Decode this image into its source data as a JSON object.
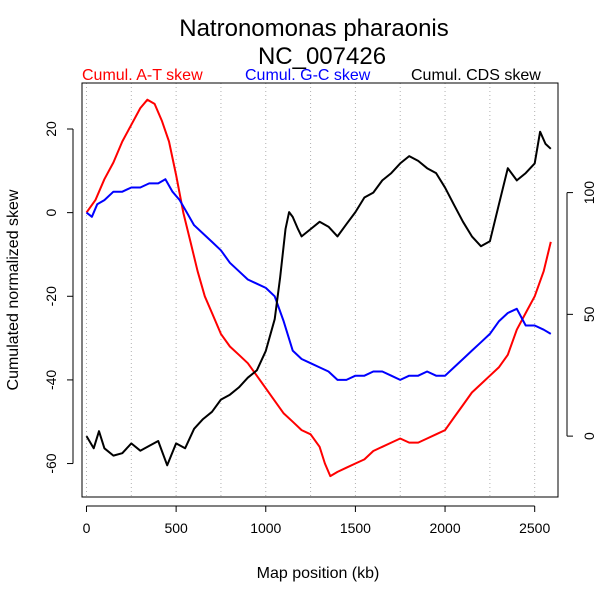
{
  "chart_data": {
    "type": "line",
    "title": "Natronomonas pharaonis",
    "subtitle": "NC_007426",
    "xlabel": "Map position (kb)",
    "ylabel": "Cumulated normalized skew",
    "xlim": [
      -25,
      2630
    ],
    "ylim": [
      -68,
      31
    ],
    "y2lim": [
      -25,
      145
    ],
    "x_ticks": [
      0,
      500,
      1000,
      1500,
      2000,
      2500
    ],
    "y_ticks": [
      -60,
      -40,
      -20,
      0,
      20
    ],
    "y2_ticks": [
      0,
      50,
      100
    ],
    "grid": "vertical-dotted",
    "legend_placement": "top",
    "series": [
      {
        "name": "Cumul. A-T skew",
        "color": "#ff0000",
        "axis": "left",
        "x": [
          0,
          50,
          100,
          150,
          200,
          250,
          300,
          340,
          380,
          420,
          460,
          500,
          540,
          580,
          620,
          660,
          700,
          750,
          800,
          850,
          900,
          950,
          1000,
          1050,
          1100,
          1150,
          1200,
          1250,
          1300,
          1330,
          1360,
          1400,
          1450,
          1500,
          1550,
          1600,
          1650,
          1700,
          1750,
          1800,
          1850,
          1900,
          1950,
          2000,
          2050,
          2100,
          2150,
          2200,
          2250,
          2300,
          2350,
          2400,
          2450,
          2500,
          2550,
          2590
        ],
        "y": [
          0,
          3,
          8,
          12,
          17,
          21,
          25,
          27,
          26,
          22,
          17,
          9,
          0,
          -7,
          -14,
          -20,
          -24,
          -29,
          -32,
          -34,
          -36,
          -39,
          -42,
          -45,
          -48,
          -50,
          -52,
          -53,
          -56,
          -60,
          -63,
          -62,
          -61,
          -60,
          -59,
          -57,
          -56,
          -55,
          -54,
          -55,
          -55,
          -54,
          -53,
          -52,
          -49,
          -46,
          -43,
          -41,
          -39,
          -37,
          -34,
          -28,
          -24,
          -20,
          -14,
          -7
        ]
      },
      {
        "name": "Cumul. G-C skew",
        "color": "#0000ff",
        "axis": "left",
        "x": [
          0,
          30,
          60,
          100,
          150,
          200,
          250,
          300,
          350,
          400,
          440,
          480,
          520,
          560,
          600,
          650,
          700,
          750,
          800,
          850,
          900,
          950,
          1000,
          1050,
          1100,
          1150,
          1200,
          1250,
          1300,
          1350,
          1400,
          1450,
          1500,
          1550,
          1600,
          1650,
          1700,
          1750,
          1800,
          1850,
          1900,
          1950,
          2000,
          2050,
          2100,
          2150,
          2200,
          2250,
          2300,
          2350,
          2400,
          2450,
          2500,
          2550,
          2590
        ],
        "y": [
          0,
          -1,
          2,
          3,
          5,
          5,
          6,
          6,
          7,
          7,
          8,
          5,
          3,
          0,
          -3,
          -5,
          -7,
          -9,
          -12,
          -14,
          -16,
          -17,
          -18,
          -20,
          -26,
          -33,
          -35,
          -36,
          -37,
          -38,
          -40,
          -40,
          -39,
          -39,
          -38,
          -38,
          -39,
          -40,
          -39,
          -39,
          -38,
          -39,
          -39,
          -37,
          -35,
          -33,
          -31,
          -29,
          -26,
          -24,
          -23,
          -27,
          -27,
          -28,
          -29
        ]
      },
      {
        "name": "Cumul. CDS skew",
        "color": "#000000",
        "axis": "right",
        "x": [
          0,
          40,
          70,
          100,
          150,
          200,
          250,
          300,
          350,
          400,
          450,
          500,
          550,
          600,
          650,
          700,
          750,
          800,
          850,
          900,
          950,
          1000,
          1050,
          1080,
          1110,
          1130,
          1150,
          1180,
          1200,
          1250,
          1300,
          1350,
          1400,
          1450,
          1500,
          1550,
          1600,
          1650,
          1700,
          1750,
          1800,
          1850,
          1900,
          1950,
          2000,
          2050,
          2100,
          2150,
          2200,
          2250,
          2300,
          2350,
          2400,
          2450,
          2500,
          2530,
          2560,
          2590
        ],
        "y": [
          0,
          -5,
          2,
          -5,
          -8,
          -7,
          -3,
          -6,
          -4,
          -2,
          -12,
          -3,
          -5,
          3,
          7,
          10,
          15,
          17,
          20,
          24,
          27,
          35,
          48,
          65,
          85,
          92,
          90,
          85,
          82,
          85,
          88,
          86,
          82,
          87,
          92,
          98,
          100,
          105,
          108,
          112,
          115,
          113,
          110,
          108,
          102,
          95,
          88,
          82,
          78,
          80,
          95,
          110,
          105,
          108,
          112,
          125,
          120,
          118
        ]
      }
    ]
  }
}
